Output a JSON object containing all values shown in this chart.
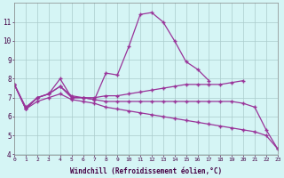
{
  "line_color": "#993399",
  "bg_color": "#d5f5f5",
  "grid_color": "#aacccc",
  "xlabel": "Windchill (Refroidissement éolien,°C)",
  "ylim": [
    4,
    12
  ],
  "xlim": [
    0,
    23
  ],
  "yticks": [
    4,
    5,
    6,
    7,
    8,
    9,
    10,
    11
  ],
  "xticks": [
    0,
    1,
    2,
    3,
    4,
    5,
    6,
    7,
    8,
    9,
    10,
    11,
    12,
    13,
    14,
    15,
    16,
    17,
    18,
    19,
    20,
    21,
    22,
    23
  ],
  "s1_x": [
    0,
    1,
    2,
    3,
    4,
    5,
    6,
    7,
    8,
    9,
    10,
    11,
    12,
    13,
    14,
    15,
    16,
    17
  ],
  "s1_y": [
    7.7,
    6.4,
    7.0,
    7.2,
    8.0,
    7.0,
    7.0,
    6.9,
    8.3,
    8.2,
    9.7,
    11.4,
    11.5,
    11.0,
    10.0,
    8.9,
    8.5,
    7.9
  ],
  "s2_x": [
    0,
    1,
    2,
    3,
    4,
    5,
    6,
    7,
    8,
    9,
    10,
    11,
    12,
    13,
    14,
    15,
    16,
    17,
    18,
    19,
    20
  ],
  "s2_y": [
    7.7,
    6.5,
    7.0,
    7.2,
    7.6,
    7.1,
    7.0,
    7.0,
    7.1,
    7.1,
    7.2,
    7.3,
    7.4,
    7.5,
    7.6,
    7.7,
    7.7,
    7.7,
    7.7,
    7.8,
    7.9
  ],
  "s3_x": [
    0,
    1,
    2,
    3,
    4,
    5,
    6,
    7,
    8,
    9,
    10,
    11,
    12,
    13,
    14,
    15,
    16,
    17,
    18,
    19,
    20,
    21,
    22,
    23
  ],
  "s3_y": [
    7.7,
    6.4,
    7.0,
    7.2,
    7.6,
    7.0,
    7.0,
    6.9,
    6.8,
    6.8,
    6.8,
    6.8,
    6.8,
    6.8,
    6.8,
    6.8,
    6.8,
    6.8,
    6.8,
    6.8,
    6.7,
    6.5,
    5.3,
    4.3
  ],
  "s4_x": [
    0,
    1,
    2,
    3,
    4,
    5,
    6,
    7,
    8,
    9,
    10,
    11,
    12,
    13,
    14,
    15,
    16,
    17,
    18,
    19,
    20,
    21,
    22,
    23
  ],
  "s4_y": [
    7.7,
    6.4,
    6.8,
    7.0,
    7.2,
    6.9,
    6.8,
    6.7,
    6.5,
    6.4,
    6.3,
    6.2,
    6.1,
    6.0,
    5.9,
    5.8,
    5.7,
    5.6,
    5.5,
    5.4,
    5.3,
    5.2,
    5.0,
    4.3
  ]
}
